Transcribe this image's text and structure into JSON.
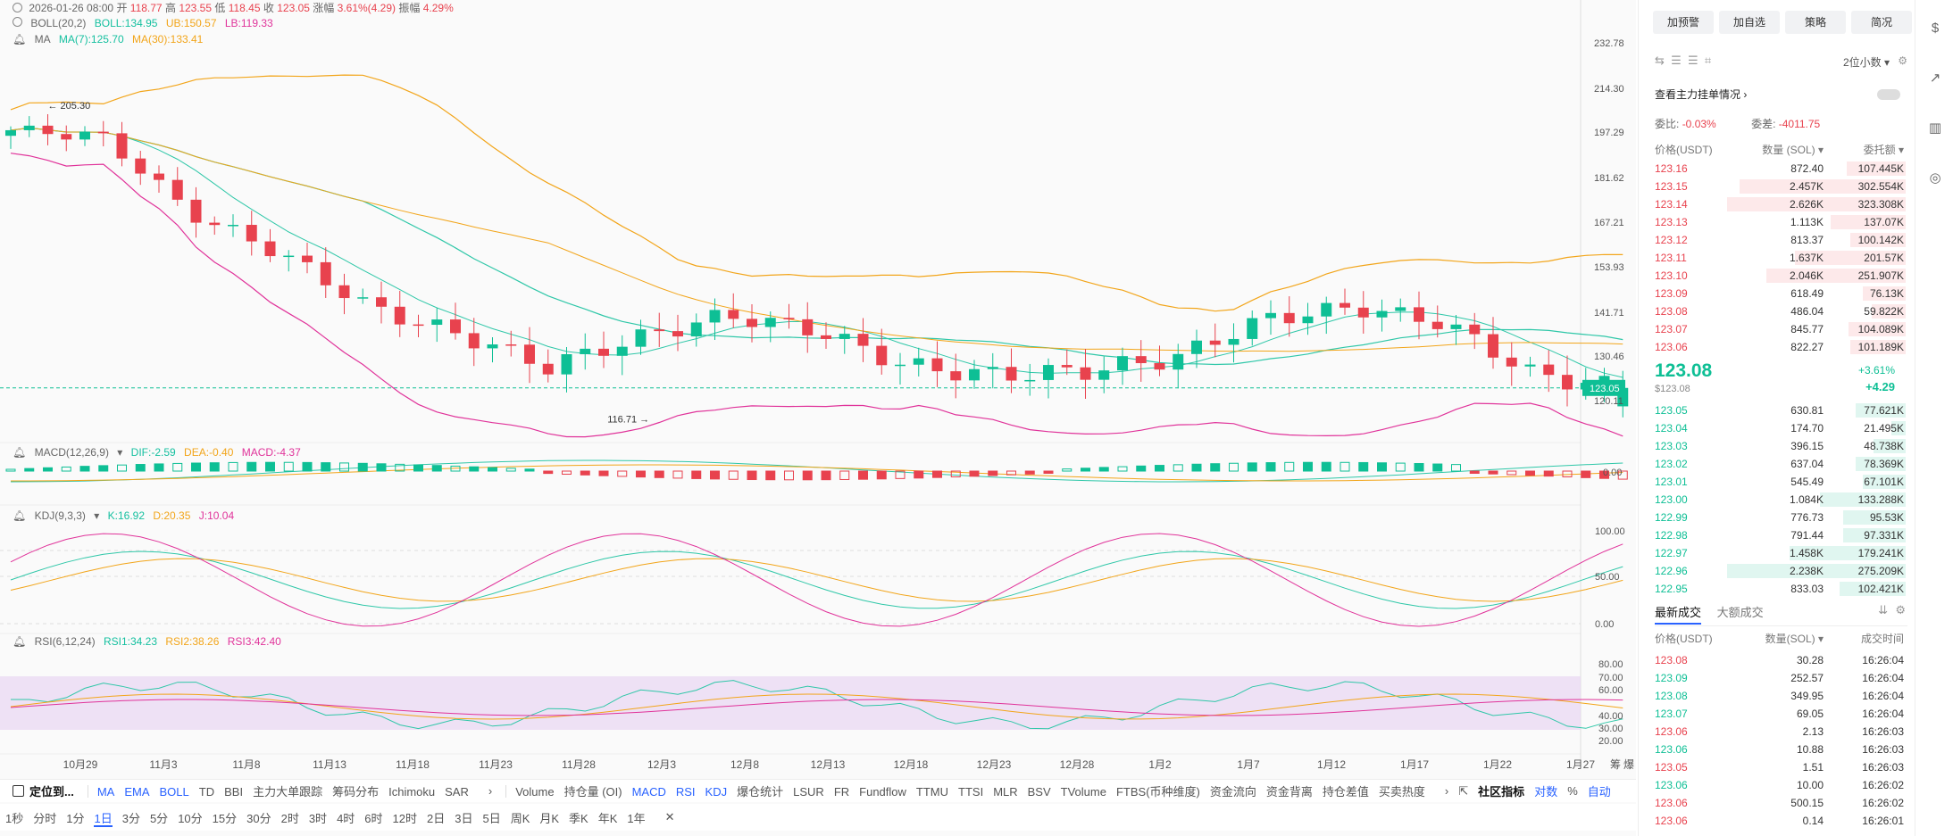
{
  "ohlc": {
    "date": "2026-01-26 08:00",
    "open_label": "开",
    "open": "118.77",
    "high_label": "高",
    "high": "123.55",
    "low_label": "低",
    "low": "118.45",
    "close_label": "收",
    "close": "123.05",
    "change_label": "涨幅",
    "change": "3.61%(4.29)",
    "amp_label": "振幅",
    "amp": "4.29%"
  },
  "legend_boll": {
    "name": "BOLL(20,2)",
    "boll": "BOLL:134.95",
    "ub": "UB:150.57",
    "lb": "LB:119.33"
  },
  "legend_ma": {
    "name": "MA",
    "ma7": "MA(7):125.70",
    "ma30": "MA(30):133.41"
  },
  "legend_macd": {
    "name": "MACD(12,26,9)",
    "dif": "DIF:-2.59",
    "dea": "DEA:-0.40",
    "macd": "MACD:-4.37"
  },
  "legend_kdj": {
    "name": "KDJ(9,3,3)",
    "k": "K:16.92",
    "d": "D:20.35",
    "j": "J:10.04"
  },
  "legend_rsi": {
    "name": "RSI(6,12,24)",
    "r1": "RSI1:34.23",
    "r2": "RSI2:38.26",
    "r3": "RSI3:42.40"
  },
  "price_axis": [
    "232.78",
    "214.30",
    "197.29",
    "181.62",
    "167.21",
    "153.93",
    "141.71",
    "130.46",
    "120.11"
  ],
  "current_price_tag": "123.05",
  "high_marker": "205.30",
  "low_marker": "116.71",
  "macd_axis": [
    "0.00"
  ],
  "kdj_axis": [
    "100.00",
    "50.00",
    "0.00"
  ],
  "rsi_axis": [
    "80.00",
    "70.00",
    "60.00",
    "40.00",
    "30.00",
    "20.00"
  ],
  "date_axis": [
    "10月29",
    "11月3",
    "11月8",
    "11月13",
    "11月18",
    "11月23",
    "11月28",
    "12月3",
    "12月8",
    "12月13",
    "12月18",
    "12月23",
    "12月28",
    "1月2",
    "1月7",
    "1月12",
    "1月17",
    "1月22",
    "1月27"
  ],
  "date_axis_tail": [
    "筹",
    "爆"
  ],
  "colors": {
    "up": "#0ebf95",
    "down": "#e8424e",
    "boll_mid": "#2fc7a8",
    "boll_ub": "#f2a51a",
    "boll_lb": "#e0339a",
    "rsi_band": "#ead8f3"
  },
  "chart_data": {
    "type": "candlestick",
    "title": "",
    "xlabel": "",
    "ylabel": "",
    "ylim": [
      116.71,
      232.78
    ],
    "x": [
      "10月29",
      "11月3",
      "11月8",
      "11月13",
      "11月18",
      "11月23",
      "11月28",
      "12月3",
      "12月8",
      "12月13",
      "12月18",
      "12月23",
      "12月28",
      "1月2",
      "1月7",
      "1月12",
      "1月17",
      "1月22",
      "1月26"
    ],
    "close": [
      198,
      196,
      170,
      158,
      143,
      136,
      128,
      135,
      141,
      137,
      128,
      126,
      127,
      130,
      140,
      143,
      139,
      126,
      123.05
    ],
    "boll_upper_last": 150.57,
    "boll_mid_last": 134.95,
    "boll_lower_last": 119.33,
    "ma7_last": 125.7,
    "ma30_last": 133.41,
    "high_marker": 205.3,
    "low_marker": 116.71,
    "last": {
      "open": 118.77,
      "high": 123.55,
      "low": 118.45,
      "close": 123.05
    }
  },
  "indicator_toolbar": {
    "locate": "定位到...",
    "items": [
      "MA",
      "EMA",
      "BOLL",
      "TD",
      "BBI",
      "主力大单跟踪",
      "筹码分布",
      "Ichimoku",
      "SAR"
    ],
    "sub": [
      "Volume",
      "持仓量 (OI)",
      "MACD",
      "RSI",
      "KDJ",
      "爆仓统计",
      "LSUR",
      "FR",
      "Fundflow",
      "TTMU",
      "TTSI",
      "MLR",
      "BSV",
      "TVolume",
      "FTBS(币种维度)",
      "资金流向",
      "资金背离",
      "持仓差值",
      "买卖热度"
    ],
    "community": "社区指标",
    "duishu": "对数",
    "pct": "%",
    "auto": "自动"
  },
  "timeframes": [
    "1秒",
    "分时",
    "1分",
    "1日",
    "3分",
    "5分",
    "10分",
    "15分",
    "30分",
    "2时",
    "3时",
    "4时",
    "6时",
    "12时",
    "2日",
    "3日",
    "5日",
    "周K",
    "月K",
    "季K",
    "年K",
    "1年"
  ],
  "side": {
    "top_buttons": [
      "加预警",
      "加自选",
      "策略",
      "简况"
    ],
    "decimal": "2位小数",
    "main_order": "查看主力挂单情况",
    "ratio_label": "委比:",
    "ratio": "-0.03%",
    "diff_label": "委差:",
    "diff": "-4011.75",
    "hdr_price": "价格(USDT)",
    "hdr_qty": "数量 (SOL)",
    "hdr_total": "委托额",
    "asks": [
      {
        "p": "123.16",
        "q": "872.40",
        "t": "107.445K",
        "w": 0.33
      },
      {
        "p": "123.15",
        "q": "2.457K",
        "t": "302.554K",
        "w": 0.93
      },
      {
        "p": "123.14",
        "q": "2.626K",
        "t": "323.308K",
        "w": 1.0
      },
      {
        "p": "123.13",
        "q": "1.113K",
        "t": "137.07K",
        "w": 0.42
      },
      {
        "p": "123.12",
        "q": "813.37",
        "t": "100.142K",
        "w": 0.31
      },
      {
        "p": "123.11",
        "q": "1.637K",
        "t": "201.57K",
        "w": 0.62
      },
      {
        "p": "123.10",
        "q": "2.046K",
        "t": "251.907K",
        "w": 0.78
      },
      {
        "p": "123.09",
        "q": "618.49",
        "t": "76.13K",
        "w": 0.24
      },
      {
        "p": "123.08",
        "q": "486.04",
        "t": "59.822K",
        "w": 0.19
      },
      {
        "p": "123.07",
        "q": "845.77",
        "t": "104.089K",
        "w": 0.32
      },
      {
        "p": "123.06",
        "q": "822.27",
        "t": "101.189K",
        "w": 0.31
      }
    ],
    "last_price": "123.08",
    "last_usd": "$123.08",
    "last_pct": "+3.61%",
    "last_chg": "+4.29",
    "bids": [
      {
        "p": "123.05",
        "q": "630.81",
        "t": "77.621K",
        "w": 0.28
      },
      {
        "p": "123.04",
        "q": "174.70",
        "t": "21.495K",
        "w": 0.08
      },
      {
        "p": "123.03",
        "q": "396.15",
        "t": "48.738K",
        "w": 0.18
      },
      {
        "p": "123.02",
        "q": "637.04",
        "t": "78.369K",
        "w": 0.28
      },
      {
        "p": "123.01",
        "q": "545.49",
        "t": "67.101K",
        "w": 0.24
      },
      {
        "p": "123.00",
        "q": "1.084K",
        "t": "133.288K",
        "w": 0.48
      },
      {
        "p": "122.99",
        "q": "776.73",
        "t": "95.53K",
        "w": 0.35
      },
      {
        "p": "122.98",
        "q": "791.44",
        "t": "97.331K",
        "w": 0.35
      },
      {
        "p": "122.97",
        "q": "1.458K",
        "t": "179.241K",
        "w": 0.65
      },
      {
        "p": "122.96",
        "q": "2.238K",
        "t": "275.209K",
        "w": 1.0
      },
      {
        "p": "122.95",
        "q": "833.03",
        "t": "102.421K",
        "w": 0.37
      }
    ],
    "trade_tabs": [
      "最新成交",
      "大额成交"
    ],
    "trade_hdr": {
      "price": "价格(USDT)",
      "qty": "数量(SOL)",
      "time": "成交时间"
    },
    "trades": [
      {
        "p": "123.08",
        "q": "30.28",
        "t": "16:26:04",
        "s": "down"
      },
      {
        "p": "123.09",
        "q": "252.57",
        "t": "16:26:04",
        "s": "up"
      },
      {
        "p": "123.08",
        "q": "349.95",
        "t": "16:26:04",
        "s": "up"
      },
      {
        "p": "123.07",
        "q": "69.05",
        "t": "16:26:04",
        "s": "up"
      },
      {
        "p": "123.06",
        "q": "2.13",
        "t": "16:26:03",
        "s": "down"
      },
      {
        "p": "123.06",
        "q": "10.88",
        "t": "16:26:03",
        "s": "up"
      },
      {
        "p": "123.05",
        "q": "1.51",
        "t": "16:26:03",
        "s": "down"
      },
      {
        "p": "123.06",
        "q": "10.00",
        "t": "16:26:02",
        "s": "up"
      },
      {
        "p": "123.06",
        "q": "500.15",
        "t": "16:26:02",
        "s": "down"
      },
      {
        "p": "123.06",
        "q": "0.14",
        "t": "16:26:01",
        "s": "down"
      }
    ]
  }
}
